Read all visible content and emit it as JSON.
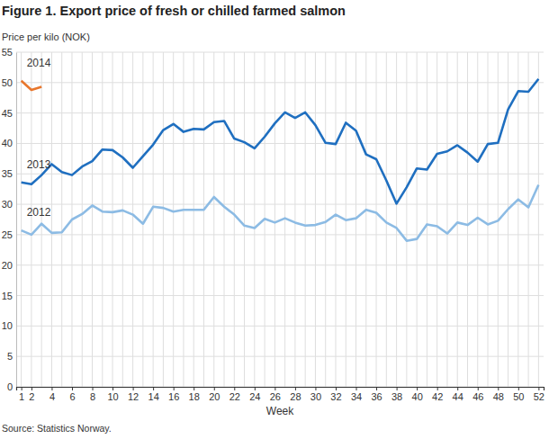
{
  "chart_data": {
    "type": "line",
    "title": "Figure 1. Export price of fresh or chilled farmed salmon",
    "y_label": "Price per kilo (NOK)",
    "x_label": "Week",
    "source": "Source: Statistics Norway.",
    "grid": true,
    "x": [
      1,
      2,
      3,
      4,
      5,
      6,
      7,
      8,
      9,
      10,
      11,
      12,
      13,
      14,
      15,
      16,
      17,
      18,
      19,
      20,
      21,
      22,
      23,
      24,
      25,
      26,
      27,
      28,
      29,
      30,
      31,
      32,
      33,
      34,
      35,
      36,
      37,
      38,
      39,
      40,
      41,
      42,
      43,
      44,
      45,
      46,
      47,
      48,
      49,
      50,
      51,
      52
    ],
    "xlim": [
      0.5,
      52.5
    ],
    "xticks": [
      1,
      2,
      4,
      6,
      8,
      10,
      12,
      14,
      16,
      18,
      20,
      22,
      24,
      26,
      28,
      30,
      32,
      34,
      36,
      38,
      40,
      42,
      44,
      46,
      48,
      50,
      52
    ],
    "ylim": [
      0,
      55
    ],
    "yticks": [
      0,
      5,
      10,
      15,
      20,
      25,
      30,
      35,
      40,
      45,
      50,
      55
    ],
    "series": [
      {
        "name": "2014",
        "color": "#e8762c",
        "values": [
          50.3,
          48.8,
          49.3,
          null,
          null,
          null,
          null,
          null,
          null,
          null,
          null,
          null,
          null,
          null,
          null,
          null,
          null,
          null,
          null,
          null,
          null,
          null,
          null,
          null,
          null,
          null,
          null,
          null,
          null,
          null,
          null,
          null,
          null,
          null,
          null,
          null,
          null,
          null,
          null,
          null,
          null,
          null,
          null,
          null,
          null,
          null,
          null,
          null,
          null,
          null,
          null,
          null
        ]
      },
      {
        "name": "2013",
        "color": "#1f6fc0",
        "values": [
          33.6,
          33.3,
          34.8,
          36.6,
          35.3,
          34.8,
          36.2,
          37.1,
          39.0,
          38.9,
          37.7,
          36.0,
          37.9,
          39.8,
          42.2,
          43.2,
          41.9,
          42.4,
          42.3,
          43.5,
          43.7,
          40.8,
          40.2,
          39.2,
          41.1,
          43.3,
          45.1,
          44.2,
          45.1,
          43.0,
          40.1,
          39.9,
          43.4,
          42.1,
          38.2,
          37.4,
          33.9,
          30.1,
          32.8,
          35.9,
          35.7,
          38.3,
          38.7,
          39.7,
          38.5,
          37.0,
          39.9,
          40.1,
          45.6,
          48.6,
          48.5,
          50.6
        ]
      },
      {
        "name": "2012",
        "color": "#8cbbe4",
        "values": [
          25.7,
          25.0,
          26.8,
          25.3,
          25.4,
          27.5,
          28.4,
          29.8,
          28.8,
          28.7,
          29.0,
          28.3,
          26.8,
          29.6,
          29.4,
          28.8,
          29.1,
          29.1,
          29.1,
          31.2,
          29.6,
          28.3,
          26.5,
          26.1,
          27.6,
          27.0,
          27.7,
          27.0,
          26.5,
          26.6,
          27.1,
          28.3,
          27.4,
          27.7,
          29.1,
          28.6,
          27.0,
          26.1,
          24.0,
          24.3,
          26.7,
          26.4,
          25.2,
          27.0,
          26.6,
          27.8,
          26.7,
          27.3,
          29.2,
          30.8,
          29.5,
          33.2
        ]
      }
    ]
  }
}
